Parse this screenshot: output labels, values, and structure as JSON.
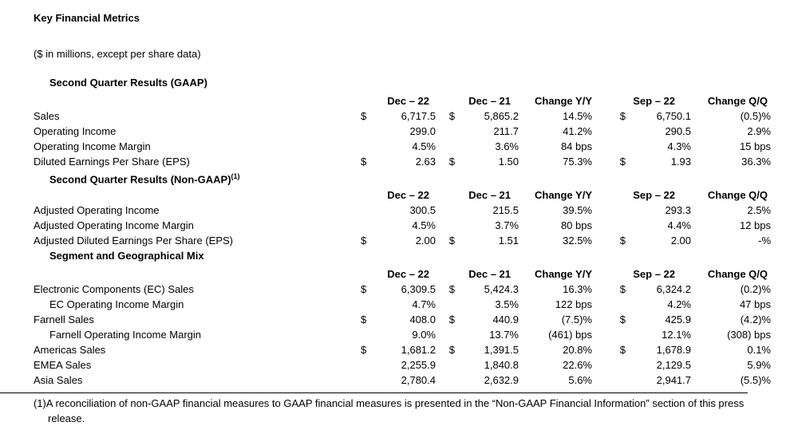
{
  "document": {
    "title": "Key Financial Metrics",
    "subtitle": "($ in millions, except per share data)",
    "dollar_sign": "$",
    "columns": [
      "Dec – 22",
      "Dec – 21",
      "Change Y/Y",
      "Sep – 22",
      "Change Q/Q"
    ],
    "sections": [
      {
        "title": "Second Quarter Results (GAAP)",
        "title_superscript": "",
        "rows": [
          {
            "label": "Sales",
            "indent": 0,
            "dollars": [
              true,
              true,
              false,
              true,
              false
            ],
            "values": [
              "6,717.5",
              "5,865.2",
              "14.5%",
              "6,750.1",
              "(0.5)%"
            ]
          },
          {
            "label": "Operating Income",
            "indent": 0,
            "dollars": [
              false,
              false,
              false,
              false,
              false
            ],
            "values": [
              "299.0",
              "211.7",
              "41.2%",
              "290.5",
              "2.9%"
            ]
          },
          {
            "label": "Operating Income Margin",
            "indent": 0,
            "dollars": [
              false,
              false,
              false,
              false,
              false
            ],
            "values": [
              "4.5%",
              "3.6%",
              "84 bps",
              "4.3%",
              "15 bps"
            ]
          },
          {
            "label": "Diluted Earnings Per Share (EPS)",
            "indent": 0,
            "dollars": [
              true,
              true,
              false,
              true,
              false
            ],
            "values": [
              "2.63",
              "1.50",
              "75.3%",
              "1.93",
              "36.3%"
            ]
          }
        ]
      },
      {
        "title": "Second Quarter Results (Non-GAAP)",
        "title_superscript": "(1)",
        "rows": [
          {
            "label": "Adjusted Operating Income",
            "indent": 0,
            "dollars": [
              false,
              false,
              false,
              false,
              false
            ],
            "values": [
              "300.5",
              "215.5",
              "39.5%",
              "293.3",
              "2.5%"
            ]
          },
          {
            "label": "Adjusted Operating Income Margin",
            "indent": 0,
            "dollars": [
              false,
              false,
              false,
              false,
              false
            ],
            "values": [
              "4.5%",
              "3.7%",
              "80 bps",
              "4.4%",
              "12 bps"
            ]
          },
          {
            "label": "Adjusted Diluted Earnings Per Share (EPS)",
            "indent": 0,
            "dollars": [
              true,
              true,
              false,
              true,
              false
            ],
            "values": [
              "2.00",
              "1.51",
              "32.5%",
              "2.00",
              "-%"
            ]
          }
        ]
      },
      {
        "title": "Segment and Geographical Mix",
        "title_superscript": "",
        "rows": [
          {
            "label": "Electronic Components (EC) Sales",
            "indent": 0,
            "dollars": [
              true,
              true,
              false,
              true,
              false
            ],
            "values": [
              "6,309.5",
              "5,424.3",
              "16.3%",
              "6,324.2",
              "(0.2)%"
            ]
          },
          {
            "label": "EC Operating Income Margin",
            "indent": 1,
            "dollars": [
              false,
              false,
              false,
              false,
              false
            ],
            "values": [
              "4.7%",
              "3.5%",
              "122 bps",
              "4.2%",
              "47 bps"
            ]
          },
          {
            "label": "Farnell Sales",
            "indent": 0,
            "dollars": [
              true,
              true,
              false,
              true,
              false
            ],
            "values": [
              "408.0",
              "440.9",
              "(7.5)%",
              "425.9",
              "(4.2)%"
            ]
          },
          {
            "label": "Farnell Operating Income Margin",
            "indent": 1,
            "dollars": [
              false,
              false,
              false,
              false,
              false
            ],
            "values": [
              "9.0%",
              "13.7%",
              "(461) bps",
              "12.1%",
              "(308) bps"
            ]
          },
          {
            "label": "Americas Sales",
            "indent": 0,
            "dollars": [
              true,
              true,
              false,
              true,
              false
            ],
            "values": [
              "1,681.2",
              "1,391.5",
              "20.8%",
              "1,678.9",
              "0.1%"
            ]
          },
          {
            "label": "EMEA Sales",
            "indent": 0,
            "dollars": [
              false,
              false,
              false,
              false,
              false
            ],
            "values": [
              "2,255.9",
              "1,840.8",
              "22.6%",
              "2,129.5",
              "5.9%"
            ]
          },
          {
            "label": "Asia Sales",
            "indent": 0,
            "dollars": [
              false,
              false,
              false,
              false,
              false
            ],
            "values": [
              "2,780.4",
              "2,632.9",
              "5.6%",
              "2,941.7",
              "(5.5)%"
            ]
          }
        ]
      }
    ],
    "footnote": {
      "marker": "(1)",
      "text": "A reconciliation of non-GAAP financial measures to GAAP financial measures is presented in the “Non-GAAP Financial Information” section of this press release."
    }
  }
}
